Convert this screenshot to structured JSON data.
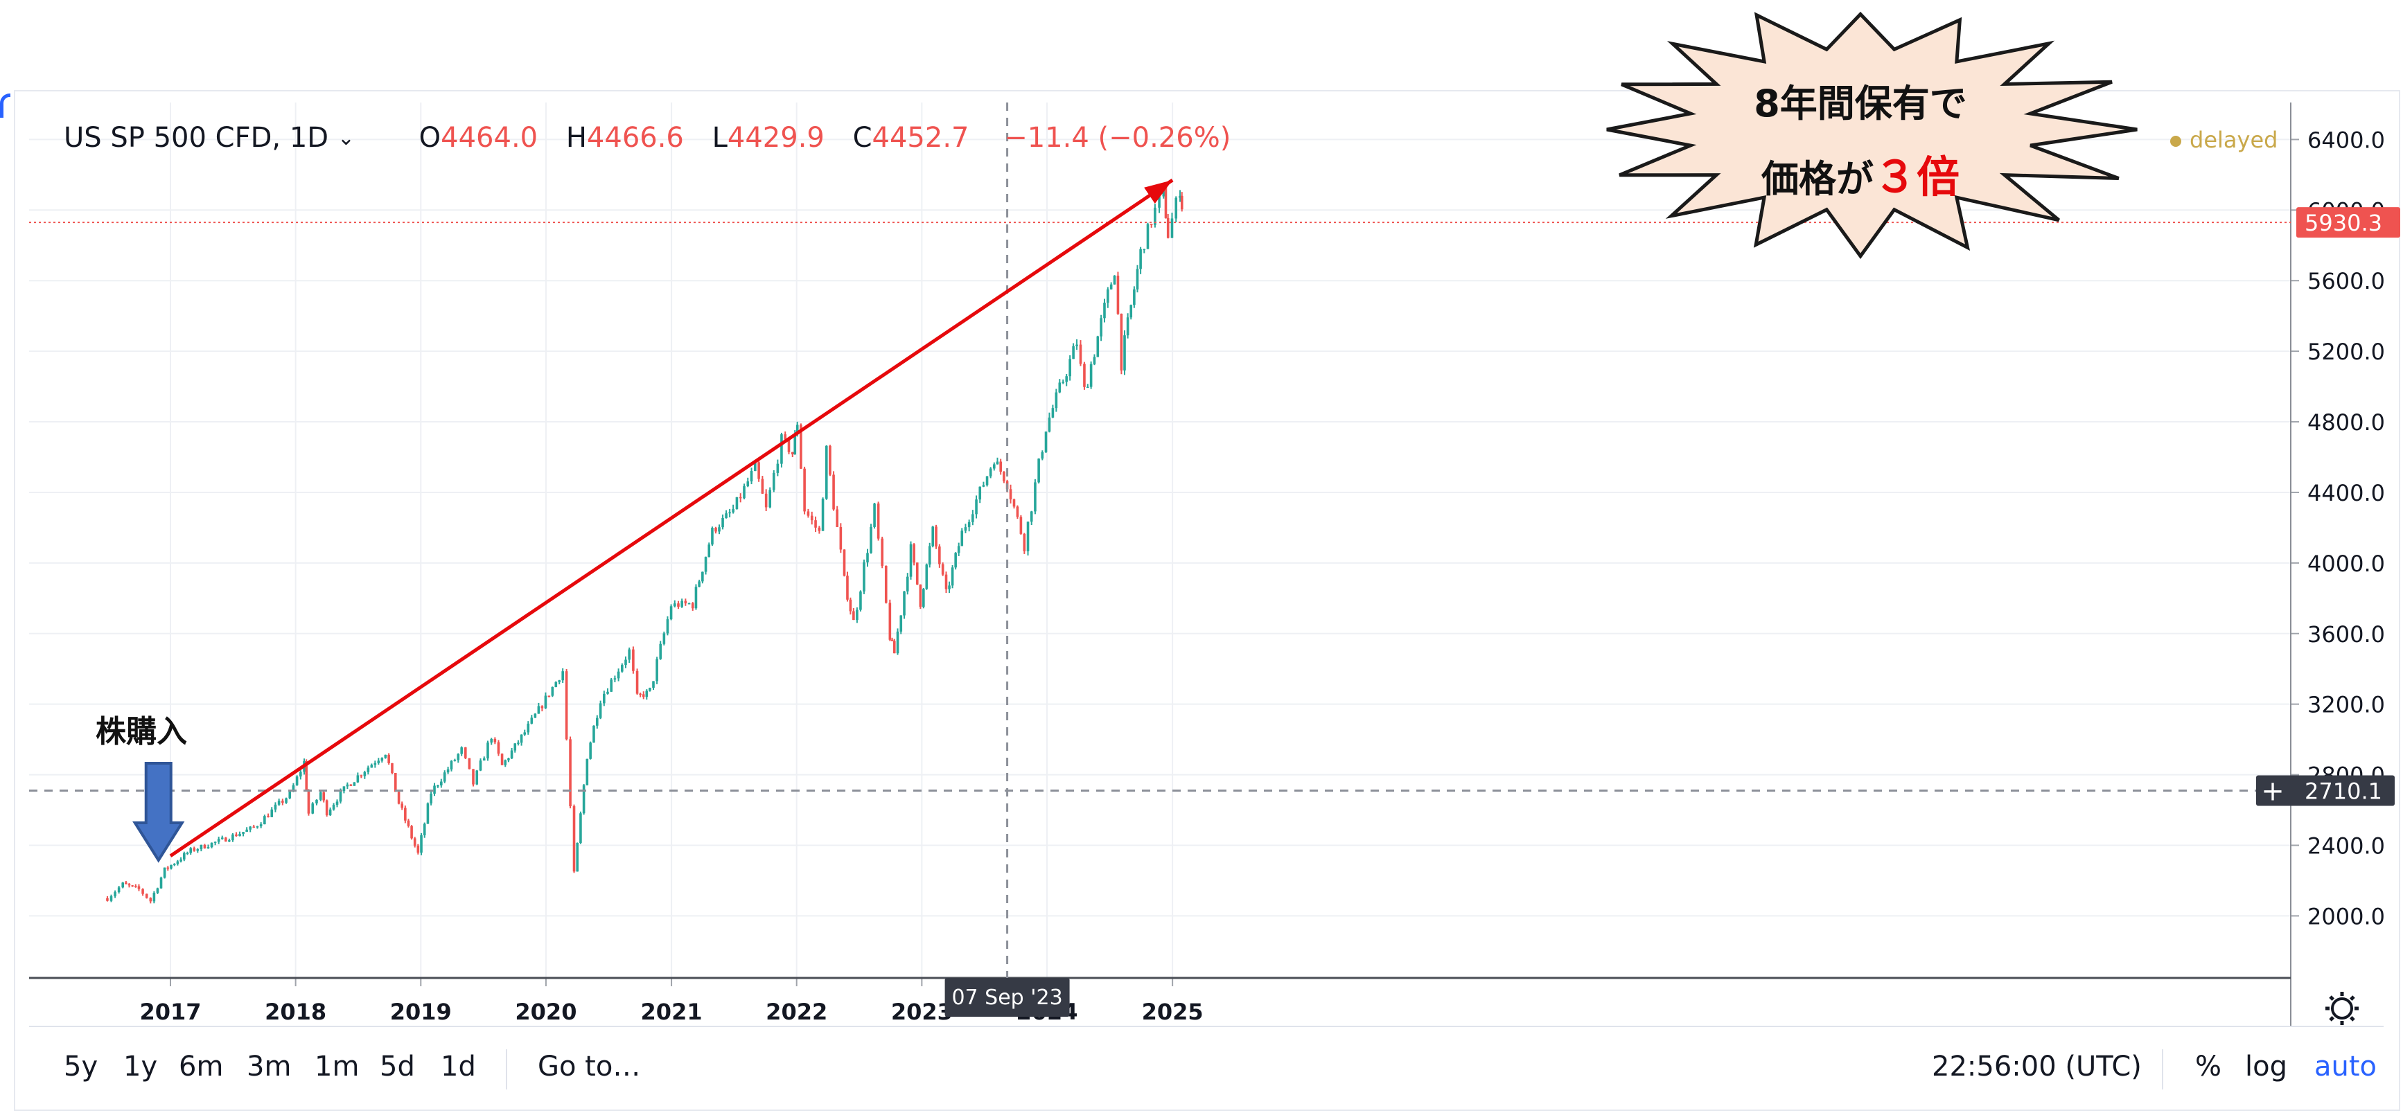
{
  "header": {
    "symbol": "US SP 500 CFD, 1D",
    "symbol_chevron_icon": "chevron-down-icon",
    "ohlc": [
      {
        "label": "O",
        "value": "4464.0"
      },
      {
        "label": "H",
        "value": "4466.6"
      },
      {
        "label": "L",
        "value": "4429.9"
      },
      {
        "label": "C",
        "value": "4452.7"
      }
    ],
    "change": "−11.4 (−0.26%)",
    "delayed": "delayed"
  },
  "price_axis": {
    "ticks": [
      "6400.0",
      "6000.0",
      "5600.0",
      "5200.0",
      "4800.0",
      "4400.0",
      "4000.0",
      "3600.0",
      "3200.0",
      "2800.0",
      "2400.0",
      "2000.0"
    ],
    "last_price": "5930.3",
    "crosshair_price": "2710.1"
  },
  "time_axis": {
    "ticks": [
      "2017",
      "2018",
      "2019",
      "2020",
      "2021",
      "2022",
      "2023",
      "2024",
      "2025"
    ],
    "crosshair_date": "07 Sep '23",
    "settings_icon": "gear-icon"
  },
  "toolbar": {
    "ranges": [
      "5y",
      "1y",
      "6m",
      "3m",
      "1m",
      "5d",
      "1d"
    ],
    "goto": "Go to…",
    "time": "22:56:00 (UTC)",
    "percent": "%",
    "log": "log",
    "auto": "auto"
  },
  "annotations": {
    "callout_line1": "8年間保有で",
    "callout_line2_prefix": "価格が",
    "callout_line2_emph": "３倍",
    "buy_label": "株購入"
  },
  "colors": {
    "up": "#26a69a",
    "down": "#ef5350",
    "trend_line": "#e6090c",
    "buy_arrow": "#2f5597",
    "callout_fill": "#fbe5d6",
    "accent": "#2962ff"
  },
  "chart_data": {
    "type": "line",
    "instrument": "US SP 500 CFD",
    "interval": "1D",
    "ylim": [
      1700,
      6600
    ],
    "x_range": [
      "2016-06",
      "2025-02"
    ],
    "series": [
      {
        "x": [
          "2016-07-01",
          "2016-08-15",
          "2016-10-01",
          "2016-11-04",
          "2016-12-15",
          "2017-03-01",
          "2017-06-01",
          "2017-09-01",
          "2017-12-15",
          "2018-01-26",
          "2018-02-08",
          "2018-03-15",
          "2018-04-02",
          "2018-06-01",
          "2018-09-20",
          "2018-10-29",
          "2018-12-24",
          "2019-01-31",
          "2019-04-30",
          "2019-06-03",
          "2019-07-26",
          "2019-08-26",
          "2019-10-31",
          "2019-12-31",
          "2020-02-19",
          "2020-03-23",
          "2020-04-30",
          "2020-06-08",
          "2020-08-31",
          "2020-09-23",
          "2020-10-30",
          "2020-12-31",
          "2021-03-04",
          "2021-04-30",
          "2021-06-30",
          "2021-09-02",
          "2021-10-04",
          "2021-11-18",
          "2021-12-20",
          "2022-01-03",
          "2022-01-24",
          "2022-03-08",
          "2022-03-29",
          "2022-05-20",
          "2022-06-16",
          "2022-08-16",
          "2022-09-30",
          "2022-10-13",
          "2022-11-30",
          "2022-12-28",
          "2023-02-02",
          "2023-03-13",
          "2023-04-28",
          "2023-06-30",
          "2023-07-31",
          "2023-09-07",
          "2023-10-27",
          "2023-12-29",
          "2024-03-28",
          "2024-04-19",
          "2024-07-16",
          "2024-08-05",
          "2024-09-30",
          "2024-11-11",
          "2024-12-06",
          "2024-12-19",
          "2025-01-23",
          "2025-02-03"
        ],
        "y": [
          2100,
          2180,
          2150,
          2085,
          2260,
          2370,
          2430,
          2500,
          2690,
          2870,
          2580,
          2700,
          2590,
          2740,
          2930,
          2640,
          2350,
          2700,
          2940,
          2750,
          3020,
          2850,
          3040,
          3230,
          3390,
          2220,
          2910,
          3230,
          3500,
          3240,
          3270,
          3760,
          3770,
          4180,
          4300,
          4540,
          4300,
          4700,
          4620,
          4800,
          4300,
          4170,
          4630,
          3900,
          3660,
          4300,
          3580,
          3490,
          4080,
          3780,
          4180,
          3820,
          4170,
          4450,
          4590,
          4452,
          4110,
          4770,
          5250,
          4970,
          5670,
          5140,
          5760,
          6000,
          6100,
          5860,
          6120,
          5930
        ]
      }
    ],
    "last_price": 5930.3,
    "crosshair": {
      "date": "07 Sep '23",
      "price": 2710.1
    },
    "trend_line": {
      "from": [
        "2017-01-01",
        2340
      ],
      "to": [
        "2025-01-01",
        6170
      ]
    },
    "buy_marker": {
      "date": "2016-11-15",
      "label": "株購入"
    }
  }
}
